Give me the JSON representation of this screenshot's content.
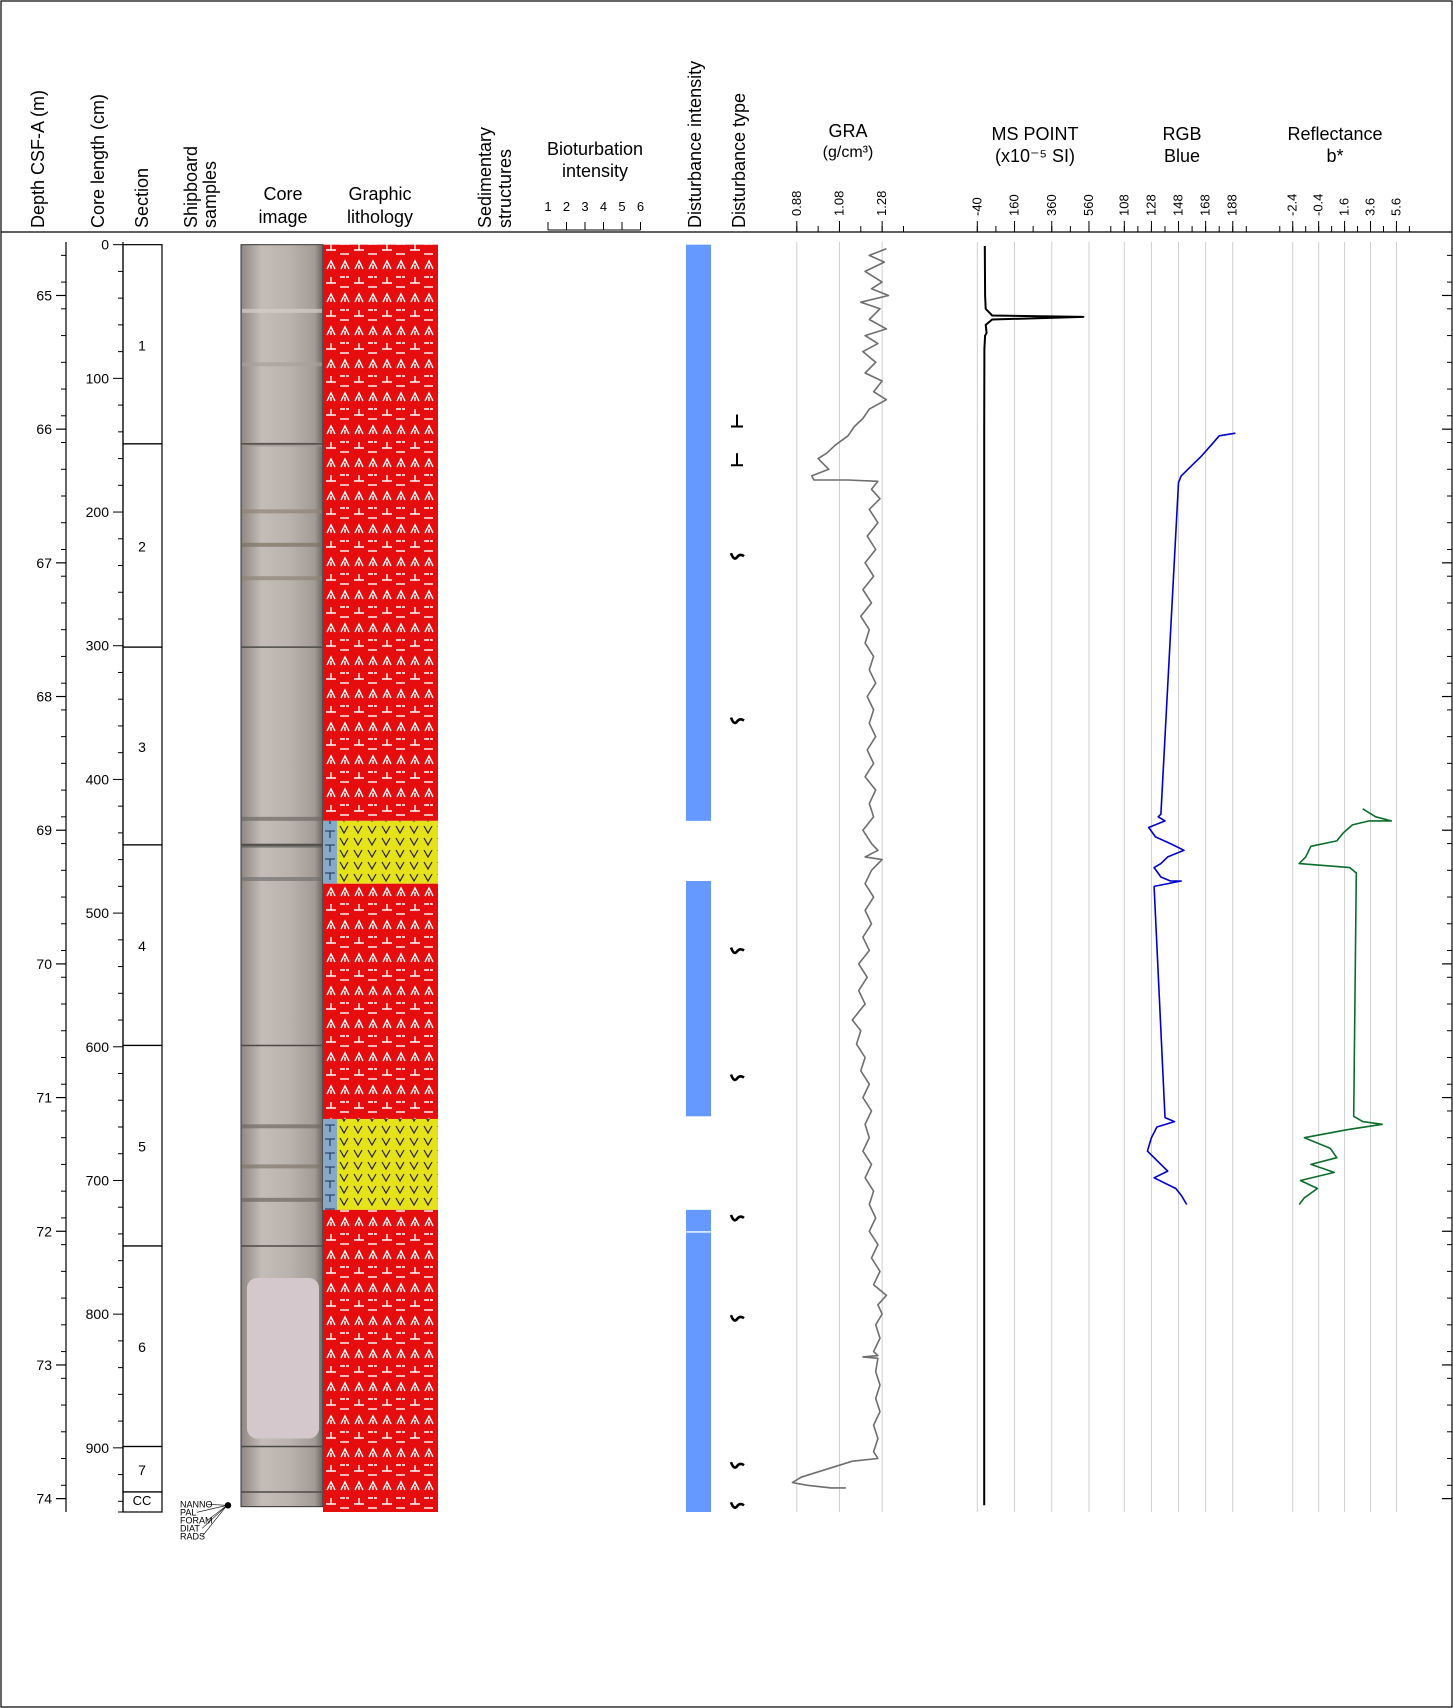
{
  "columns": {
    "depth": "Depth CSF-A (m)",
    "core_length": "Core length (cm)",
    "section": "Section",
    "shipboard": [
      "Shipboard",
      "samples"
    ],
    "core_image": [
      "Core",
      "image"
    ],
    "graphic_lithology": [
      "Graphic",
      "lithology"
    ],
    "sedimentary": [
      "Sedimentary",
      "structures"
    ],
    "bioturbation": [
      "Bioturbation",
      "intensity"
    ],
    "bioturbation_scale": [
      "1",
      "2",
      "3",
      "4",
      "5",
      "6"
    ],
    "disturbance_intensity": "Disturbance intensity",
    "disturbance_type": "Disturbance type",
    "gra": [
      "GRA",
      "(g/cm³)"
    ],
    "ms": [
      "MS POINT",
      "(x10⁻⁵ SI)"
    ],
    "rgb": [
      "RGB",
      "Blue"
    ],
    "reflectance": [
      "Reflectance",
      "b*"
    ]
  },
  "depth_axis": {
    "min": 64.6,
    "max": 74.1,
    "ticks": [
      "65",
      "66",
      "67",
      "68",
      "69",
      "70",
      "71",
      "72",
      "73",
      "74"
    ]
  },
  "core_length_axis": {
    "labels": [
      "0",
      "100",
      "200",
      "300",
      "400",
      "500",
      "600",
      "700",
      "800",
      "900"
    ]
  },
  "sections": [
    {
      "label": "1",
      "top": 64.62,
      "bottom": 66.11
    },
    {
      "label": "2",
      "top": 66.11,
      "bottom": 67.63
    },
    {
      "label": "3",
      "top": 67.63,
      "bottom": 69.11
    },
    {
      "label": "4",
      "top": 69.11,
      "bottom": 70.61
    },
    {
      "label": "5",
      "top": 70.61,
      "bottom": 72.11
    },
    {
      "label": "6",
      "top": 72.11,
      "bottom": 73.61
    },
    {
      "label": "7",
      "top": 73.61,
      "bottom": 73.95
    },
    {
      "label": "CC",
      "top": 73.95,
      "bottom": 74.1
    }
  ],
  "shipboard_samples": {
    "depth": 74.05,
    "labels": [
      "NANNO",
      "PAL",
      "FORAM",
      "DIAT",
      "RADS"
    ]
  },
  "lithology_intervals": [
    {
      "top": 64.62,
      "bottom": 68.93,
      "type": "red"
    },
    {
      "top": 68.93,
      "bottom": 69.4,
      "type": "yellow"
    },
    {
      "top": 69.4,
      "bottom": 71.16,
      "type": "red"
    },
    {
      "top": 71.16,
      "bottom": 71.84,
      "type": "yellow"
    },
    {
      "top": 71.84,
      "bottom": 74.1,
      "type": "red"
    }
  ],
  "disturbance_intensity": [
    {
      "top": 64.62,
      "bottom": 68.93
    },
    {
      "top": 69.38,
      "bottom": 71.14
    },
    {
      "top": 71.84,
      "bottom": 72.0
    },
    {
      "top": 72.01,
      "bottom": 74.1
    }
  ],
  "disturbance_type": [
    {
      "depth": 65.95,
      "symbol": "⊥"
    },
    {
      "depth": 66.24,
      "symbol": "⊥"
    },
    {
      "depth": 66.95,
      "symbol": "˜"
    },
    {
      "depth": 68.18,
      "symbol": "˜"
    },
    {
      "depth": 69.9,
      "symbol": "˜"
    },
    {
      "depth": 70.85,
      "symbol": "˜"
    },
    {
      "depth": 71.9,
      "symbol": "˜"
    },
    {
      "depth": 72.65,
      "symbol": "˜"
    },
    {
      "depth": 73.75,
      "symbol": "˜"
    },
    {
      "depth": 74.05,
      "symbol": "˜"
    }
  ],
  "chart_data": [
    {
      "type": "line",
      "name": "GRA",
      "x_ticks": [
        0.88,
        1.08,
        1.28
      ],
      "xlim": [
        0.82,
        1.42
      ],
      "color": "#6e6e6e",
      "points": [
        [
          1.3,
          64.65
        ],
        [
          1.22,
          64.7
        ],
        [
          1.29,
          64.75
        ],
        [
          1.2,
          64.82
        ],
        [
          1.28,
          64.9
        ],
        [
          1.23,
          64.95
        ],
        [
          1.31,
          65.0
        ],
        [
          1.18,
          65.05
        ],
        [
          1.27,
          65.1
        ],
        [
          1.22,
          65.18
        ],
        [
          1.3,
          65.25
        ],
        [
          1.2,
          65.3
        ],
        [
          1.26,
          65.36
        ],
        [
          1.19,
          65.42
        ],
        [
          1.25,
          65.5
        ],
        [
          1.2,
          65.58
        ],
        [
          1.28,
          65.64
        ],
        [
          1.24,
          65.72
        ],
        [
          1.3,
          65.78
        ],
        [
          1.22,
          65.85
        ],
        [
          1.19,
          65.92
        ],
        [
          1.15,
          65.98
        ],
        [
          1.12,
          66.05
        ],
        [
          1.06,
          66.12
        ],
        [
          1.02,
          66.18
        ],
        [
          0.98,
          66.22
        ],
        [
          1.03,
          66.3
        ],
        [
          0.95,
          66.35
        ],
        [
          0.96,
          66.38
        ],
        [
          1.12,
          66.38
        ],
        [
          1.26,
          66.39
        ],
        [
          1.23,
          66.45
        ],
        [
          1.27,
          66.52
        ],
        [
          1.22,
          66.6
        ],
        [
          1.26,
          66.7
        ],
        [
          1.21,
          66.8
        ],
        [
          1.25,
          66.9
        ],
        [
          1.2,
          67.0
        ],
        [
          1.24,
          67.1
        ],
        [
          1.19,
          67.2
        ],
        [
          1.23,
          67.3
        ],
        [
          1.18,
          67.4
        ],
        [
          1.22,
          67.5
        ],
        [
          1.2,
          67.6
        ],
        [
          1.24,
          67.7
        ],
        [
          1.22,
          67.8
        ],
        [
          1.25,
          67.9
        ],
        [
          1.21,
          68.0
        ],
        [
          1.24,
          68.1
        ],
        [
          1.22,
          68.2
        ],
        [
          1.25,
          68.3
        ],
        [
          1.21,
          68.4
        ],
        [
          1.24,
          68.5
        ],
        [
          1.2,
          68.6
        ],
        [
          1.25,
          68.7
        ],
        [
          1.22,
          68.8
        ],
        [
          1.24,
          68.9
        ],
        [
          1.19,
          69.0
        ],
        [
          1.23,
          69.1
        ],
        [
          1.26,
          69.15
        ],
        [
          1.2,
          69.2
        ],
        [
          1.28,
          69.22
        ],
        [
          1.23,
          69.3
        ],
        [
          1.2,
          69.4
        ],
        [
          1.24,
          69.5
        ],
        [
          1.2,
          69.6
        ],
        [
          1.23,
          69.7
        ],
        [
          1.19,
          69.8
        ],
        [
          1.22,
          69.9
        ],
        [
          1.17,
          70.0
        ],
        [
          1.21,
          70.1
        ],
        [
          1.17,
          70.2
        ],
        [
          1.2,
          70.3
        ],
        [
          1.14,
          70.42
        ],
        [
          1.18,
          70.5
        ],
        [
          1.16,
          70.6
        ],
        [
          1.2,
          70.7
        ],
        [
          1.18,
          70.8
        ],
        [
          1.22,
          70.9
        ],
        [
          1.19,
          71.0
        ],
        [
          1.23,
          71.1
        ],
        [
          1.2,
          71.2
        ],
        [
          1.22,
          71.3
        ],
        [
          1.19,
          71.4
        ],
        [
          1.23,
          71.5
        ],
        [
          1.2,
          71.6
        ],
        [
          1.24,
          71.7
        ],
        [
          1.22,
          71.8
        ],
        [
          1.25,
          71.9
        ],
        [
          1.22,
          72.0
        ],
        [
          1.26,
          72.1
        ],
        [
          1.23,
          72.2
        ],
        [
          1.27,
          72.3
        ],
        [
          1.24,
          72.4
        ],
        [
          1.3,
          72.48
        ],
        [
          1.26,
          72.55
        ],
        [
          1.28,
          72.62
        ],
        [
          1.25,
          72.7
        ],
        [
          1.27,
          72.8
        ],
        [
          1.24,
          72.9
        ],
        [
          1.26,
          72.93
        ],
        [
          1.19,
          72.94
        ],
        [
          1.26,
          72.95
        ],
        [
          1.25,
          73.05
        ],
        [
          1.27,
          73.15
        ],
        [
          1.25,
          73.25
        ],
        [
          1.27,
          73.35
        ],
        [
          1.24,
          73.45
        ],
        [
          1.26,
          73.55
        ],
        [
          1.24,
          73.65
        ],
        [
          1.26,
          73.7
        ],
        [
          1.14,
          73.72
        ],
        [
          0.9,
          73.84
        ],
        [
          0.86,
          73.88
        ],
        [
          0.93,
          73.9
        ],
        [
          1.04,
          73.92
        ],
        [
          1.1,
          73.92
        ],
        [
          1.11,
          73.92
        ]
      ]
    },
    {
      "type": "line",
      "name": "MS POINT",
      "x_ticks": [
        -40,
        160,
        360,
        560
      ],
      "xlim": [
        -90,
        630
      ],
      "color": "#000000",
      "points": [
        [
          0,
          64.63
        ],
        [
          2,
          65.0
        ],
        [
          5,
          65.1
        ],
        [
          40,
          65.15
        ],
        [
          530,
          65.16
        ],
        [
          40,
          65.18
        ],
        [
          5,
          65.22
        ],
        [
          10,
          65.28
        ],
        [
          2,
          65.3
        ],
        [
          -2,
          65.4
        ],
        [
          -3,
          66.0
        ],
        [
          -3,
          67.0
        ],
        [
          -3,
          68.0
        ],
        [
          -3,
          69.0
        ],
        [
          -3,
          70.0
        ],
        [
          -3,
          71.0
        ],
        [
          -3,
          72.0
        ],
        [
          -3,
          73.0
        ],
        [
          -3,
          74.05
        ]
      ]
    },
    {
      "type": "line",
      "name": "RGB Blue",
      "x_ticks": [
        108,
        128,
        148,
        168,
        188
      ],
      "xlim": [
        93,
        200
      ],
      "color": "#0000cc",
      "points": [
        [
          190,
          66.03
        ],
        [
          178,
          66.05
        ],
        [
          172,
          66.12
        ],
        [
          165,
          66.2
        ],
        [
          160,
          66.25
        ],
        [
          150,
          66.35
        ],
        [
          148,
          66.4
        ],
        [
          135,
          68.88
        ],
        [
          133,
          68.9
        ],
        [
          138,
          68.93
        ],
        [
          126,
          68.98
        ],
        [
          131,
          69.05
        ],
        [
          142,
          69.1
        ],
        [
          152,
          69.15
        ],
        [
          140,
          69.2
        ],
        [
          135,
          69.25
        ],
        [
          130,
          69.28
        ],
        [
          135,
          69.35
        ],
        [
          142,
          69.38
        ],
        [
          150,
          69.38
        ],
        [
          130,
          69.42
        ],
        [
          138,
          71.15
        ],
        [
          145,
          71.18
        ],
        [
          132,
          71.22
        ],
        [
          128,
          71.3
        ],
        [
          125,
          71.4
        ],
        [
          135,
          71.5
        ],
        [
          140,
          71.55
        ],
        [
          130,
          71.6
        ],
        [
          146,
          71.68
        ],
        [
          150,
          71.73
        ],
        [
          154,
          71.8
        ]
      ]
    },
    {
      "type": "line",
      "name": "Reflectance b*",
      "x_ticks": [
        -2.4,
        -0.4,
        1.6,
        3.6,
        5.6
      ],
      "xlim": [
        -4,
        6.8
      ],
      "color": "#0a6e2a",
      "points": [
        [
          3.0,
          68.84
        ],
        [
          4.0,
          68.9
        ],
        [
          5.2,
          68.93
        ],
        [
          3.5,
          68.93
        ],
        [
          2.2,
          68.96
        ],
        [
          1.5,
          69.02
        ],
        [
          1.0,
          69.08
        ],
        [
          -1.0,
          69.12
        ],
        [
          -1.4,
          69.2
        ],
        [
          -1.9,
          69.25
        ],
        [
          2.0,
          69.28
        ],
        [
          2.5,
          69.32
        ],
        [
          2.3,
          71.14
        ],
        [
          3.0,
          71.18
        ],
        [
          4.5,
          71.2
        ],
        [
          1.8,
          71.24
        ],
        [
          -1.5,
          71.3
        ],
        [
          0.5,
          71.38
        ],
        [
          1.0,
          71.45
        ],
        [
          -1.0,
          71.5
        ],
        [
          0.8,
          71.56
        ],
        [
          -1.8,
          71.62
        ],
        [
          -0.5,
          71.68
        ],
        [
          -1.5,
          71.75
        ],
        [
          -1.9,
          71.8
        ]
      ]
    }
  ]
}
